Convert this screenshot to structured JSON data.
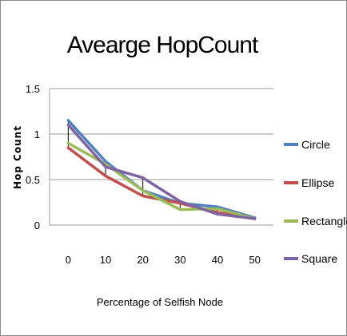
{
  "chart_data": {
    "type": "line",
    "title": "Avearge HopCount",
    "xlabel": "Percentage of Selfish Node",
    "ylabel": "Hop Count",
    "categories": [
      "0",
      "10",
      "20",
      "30",
      "40",
      "50"
    ],
    "ylim": [
      0,
      1.5
    ],
    "yticks": [
      "0",
      "0.5",
      "1",
      "1.5"
    ],
    "grid": true,
    "legend_position": "right",
    "series": [
      {
        "name": "Circle",
        "color": "#4f81bd",
        "values": [
          1.15,
          0.7,
          0.38,
          0.24,
          0.2,
          0.08
        ]
      },
      {
        "name": "Ellipse",
        "color": "#c0504d",
        "values": [
          0.85,
          0.54,
          0.32,
          0.24,
          0.14,
          0.07
        ]
      },
      {
        "name": "Rectangle",
        "color": "#9bbb59",
        "values": [
          0.9,
          0.67,
          0.38,
          0.17,
          0.18,
          0.07
        ]
      },
      {
        "name": "Square",
        "color": "#8064a2",
        "values": [
          1.1,
          0.64,
          0.52,
          0.26,
          0.12,
          0.07
        ]
      }
    ]
  }
}
